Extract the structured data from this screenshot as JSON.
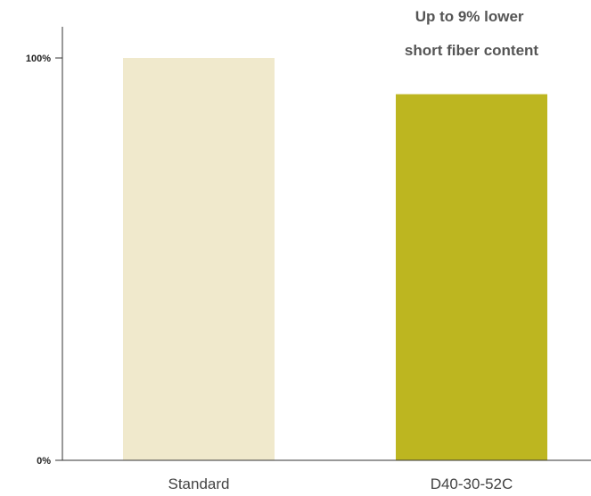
{
  "chart_data": {
    "type": "bar",
    "categories": [
      "Standard",
      "D40-30-52C"
    ],
    "values": [
      100,
      91
    ],
    "ylim": [
      0,
      100
    ],
    "yticks": [
      {
        "value": 0,
        "label": "0%"
      },
      {
        "value": 100,
        "label": "100%"
      }
    ],
    "annotation": [
      "Up to 9% lower",
      "short fiber content"
    ],
    "title": "",
    "xlabel": "",
    "ylabel": "",
    "grid": false,
    "colors": [
      "#f0e9cc",
      "#bdb620"
    ],
    "axis_color": "#333333"
  }
}
